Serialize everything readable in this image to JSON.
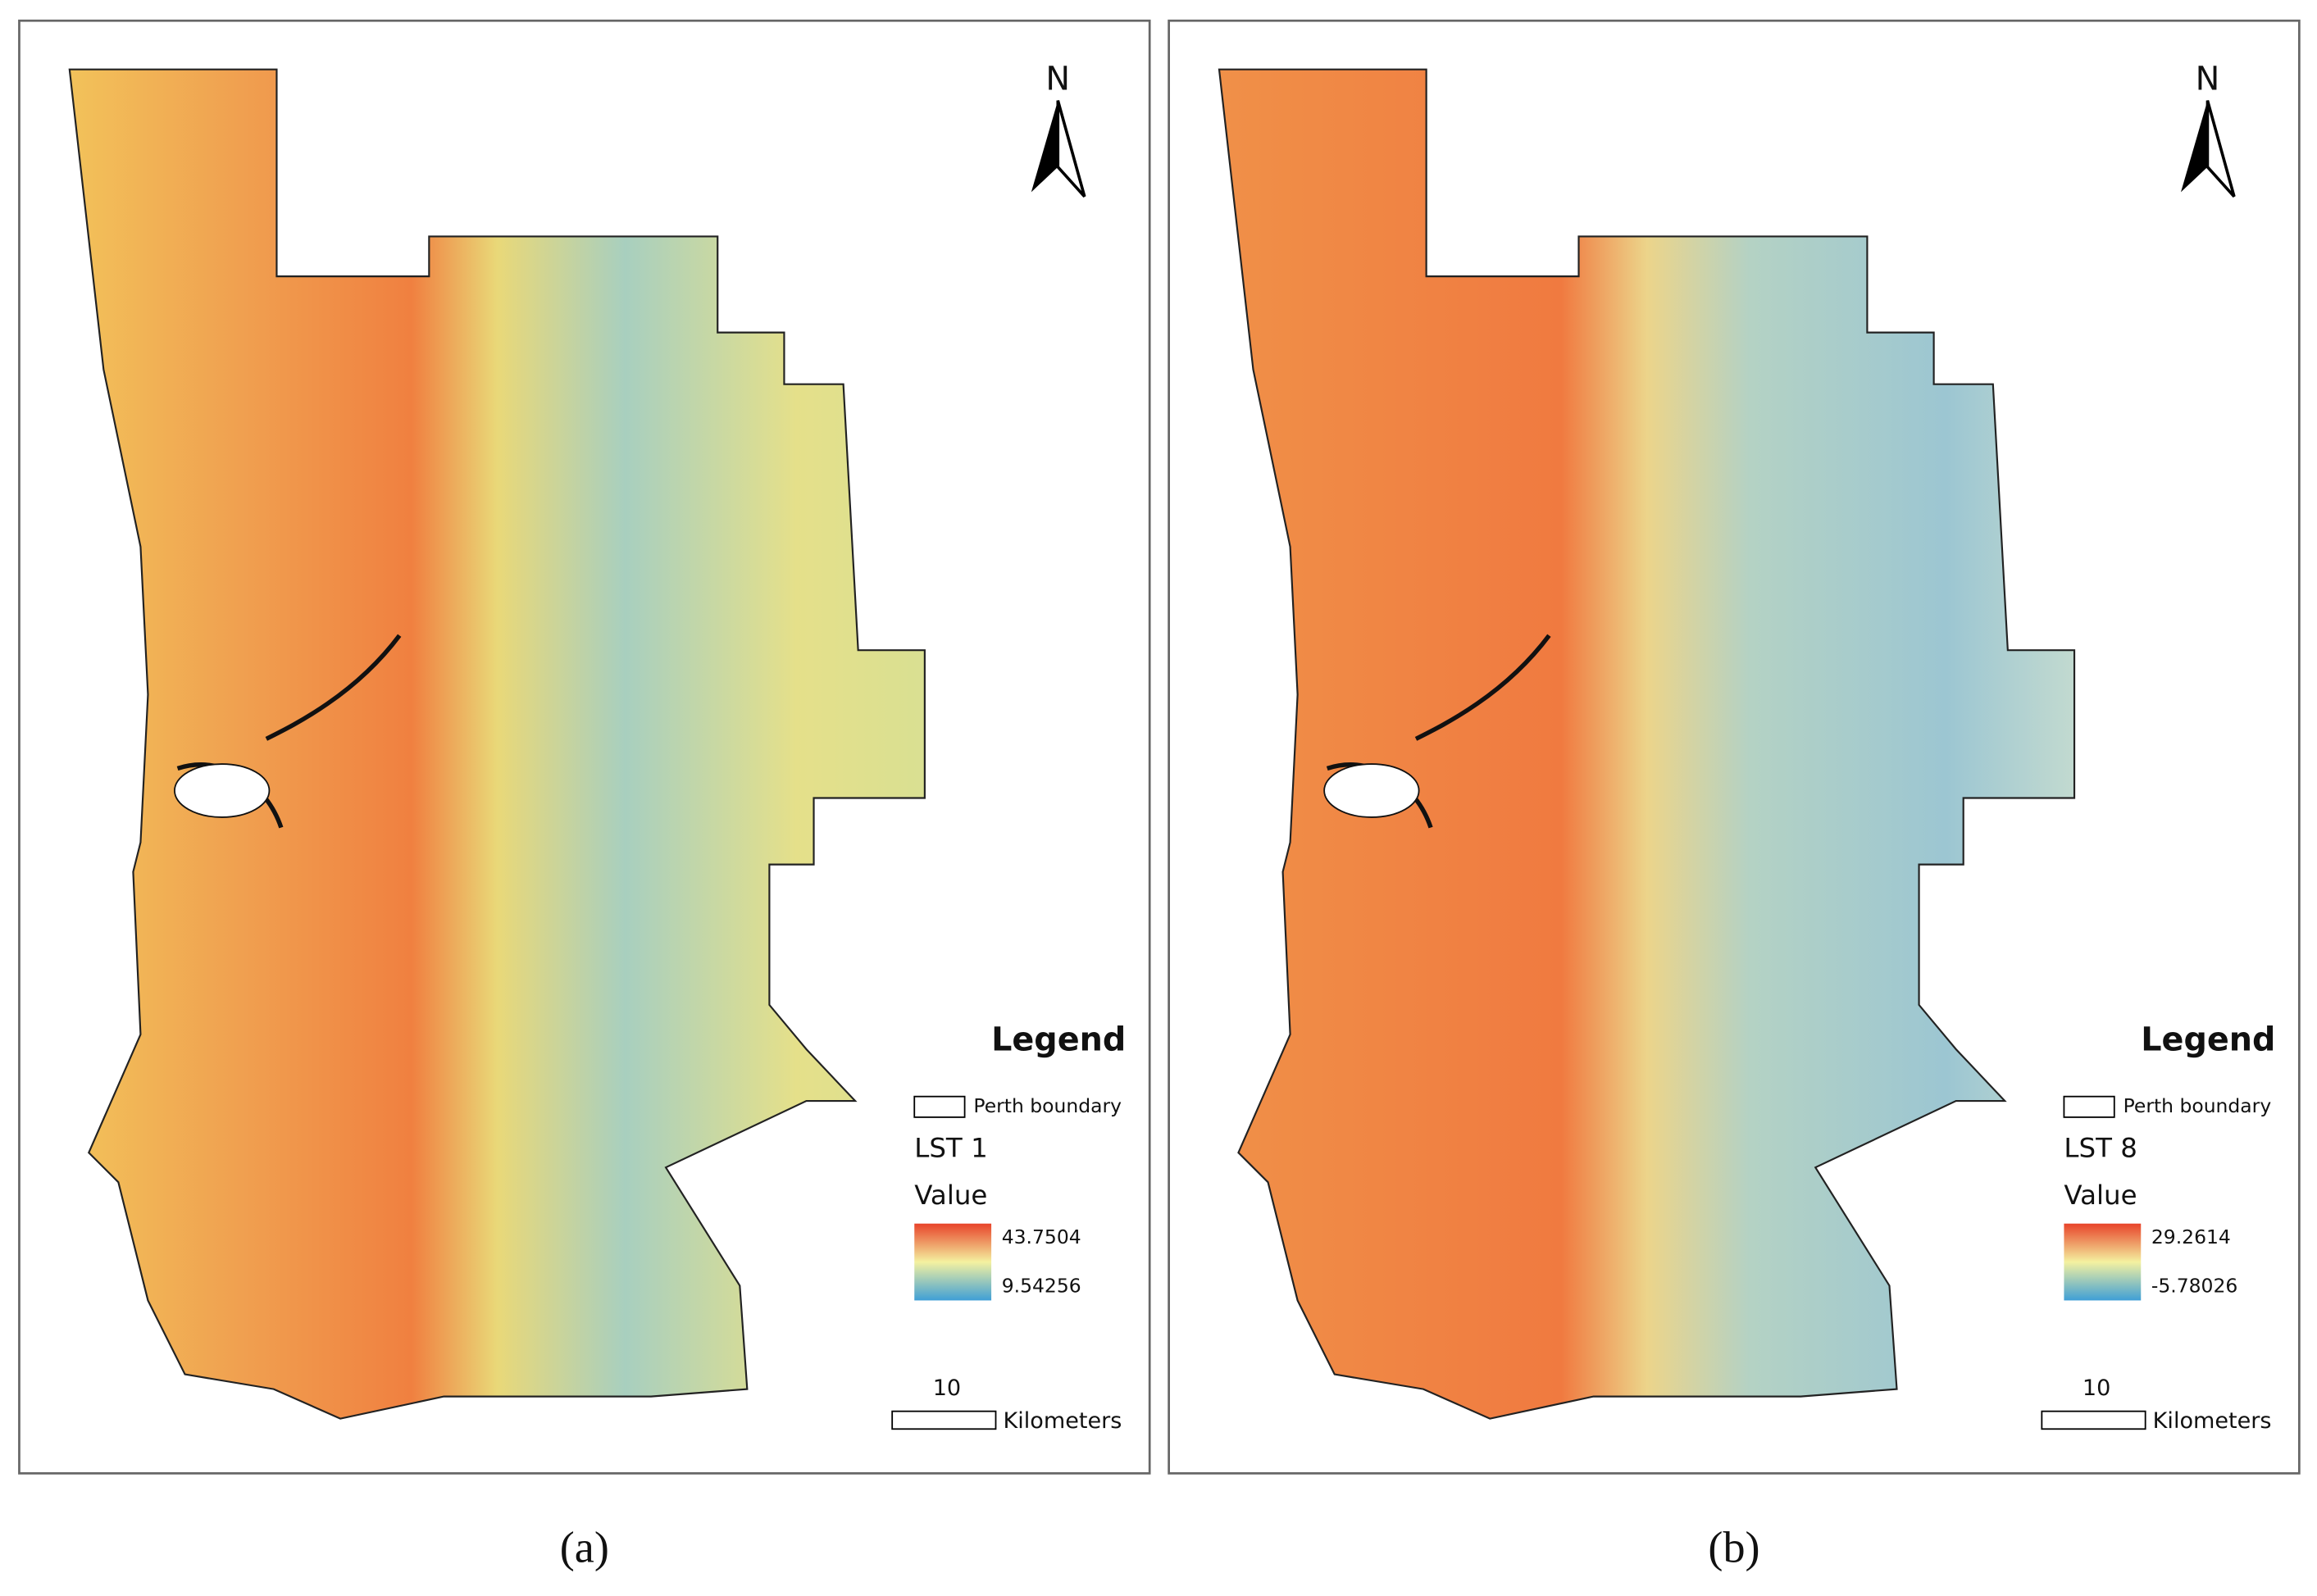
{
  "panels": [
    {
      "north": "N",
      "legend_title": "Legend",
      "boundary_label": "Perth boundary",
      "layer": "LST 1",
      "value_label": "Value",
      "max": "43.7504",
      "min": "9.54256",
      "scale_value": "10",
      "scale_unit": "Kilometers",
      "caption": "(a)"
    },
    {
      "north": "N",
      "legend_title": "Legend",
      "boundary_label": "Perth boundary",
      "layer": "LST 8",
      "value_label": "Value",
      "max": "29.2614",
      "min": "-5.78026",
      "scale_value": "10",
      "scale_unit": "Kilometers",
      "caption": "(b)"
    }
  ]
}
